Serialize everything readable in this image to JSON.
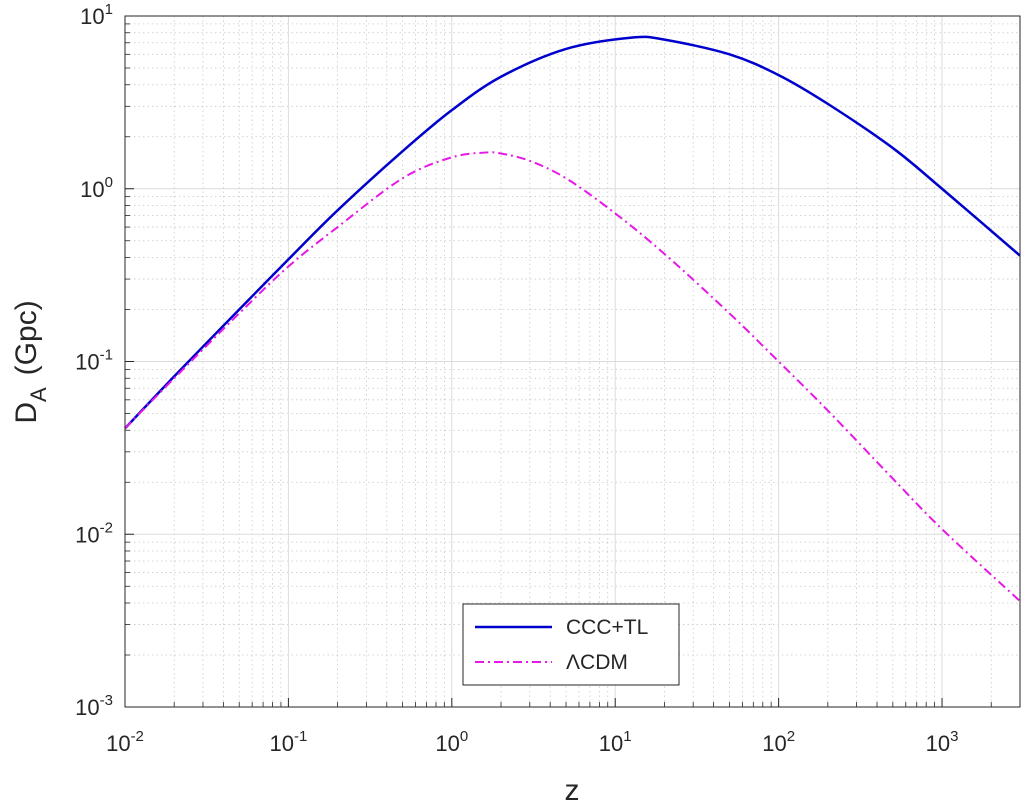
{
  "chart_data": {
    "type": "line",
    "xlabel": "z",
    "ylabel": {
      "main": "D",
      "subscript": "A",
      "unit": "(Gpc)"
    },
    "xscale": "log",
    "yscale": "log",
    "xlim": [
      0.01,
      3000
    ],
    "ylim": [
      0.001,
      10
    ],
    "grid": true,
    "minor_grid": true,
    "legend_position": "bottom-center",
    "x_ticks": [
      {
        "value": 0.01,
        "base": "10",
        "exp": "-2"
      },
      {
        "value": 0.1,
        "base": "10",
        "exp": "-1"
      },
      {
        "value": 1,
        "base": "10",
        "exp": "0"
      },
      {
        "value": 10,
        "base": "10",
        "exp": "1"
      },
      {
        "value": 100,
        "base": "10",
        "exp": "2"
      },
      {
        "value": 1000,
        "base": "10",
        "exp": "3"
      }
    ],
    "y_ticks": [
      {
        "value": 0.001,
        "base": "10",
        "exp": "-3"
      },
      {
        "value": 0.01,
        "base": "10",
        "exp": "-2"
      },
      {
        "value": 0.1,
        "base": "10",
        "exp": "-1"
      },
      {
        "value": 1,
        "base": "10",
        "exp": "0"
      },
      {
        "value": 10,
        "base": "10",
        "exp": "1"
      }
    ],
    "series": [
      {
        "name": "CCC+TL",
        "color": "#0000cd",
        "style": "solid",
        "x": [
          0.01,
          0.02,
          0.05,
          0.1,
          0.2,
          0.5,
          1,
          2,
          5,
          12.6,
          20,
          50,
          100,
          200,
          500,
          1000,
          3000
        ],
        "y": [
          0.041,
          0.082,
          0.2,
          0.39,
          0.75,
          1.65,
          2.85,
          4.45,
          6.45,
          7.5,
          7.3,
          6.0,
          4.55,
          3.1,
          1.72,
          1.0,
          0.41
        ]
      },
      {
        "name": "ΛCDM",
        "color": "#e619e6",
        "style": "dash-dot",
        "x": [
          0.01,
          0.02,
          0.05,
          0.1,
          0.2,
          0.5,
          1,
          1.6,
          2,
          3,
          5,
          10,
          20,
          50,
          100,
          200,
          500,
          1000,
          3000
        ],
        "y": [
          0.041,
          0.08,
          0.19,
          0.355,
          0.6,
          1.15,
          1.52,
          1.62,
          1.6,
          1.45,
          1.15,
          0.72,
          0.42,
          0.19,
          0.1,
          0.052,
          0.021,
          0.0107,
          0.0041
        ]
      }
    ]
  }
}
